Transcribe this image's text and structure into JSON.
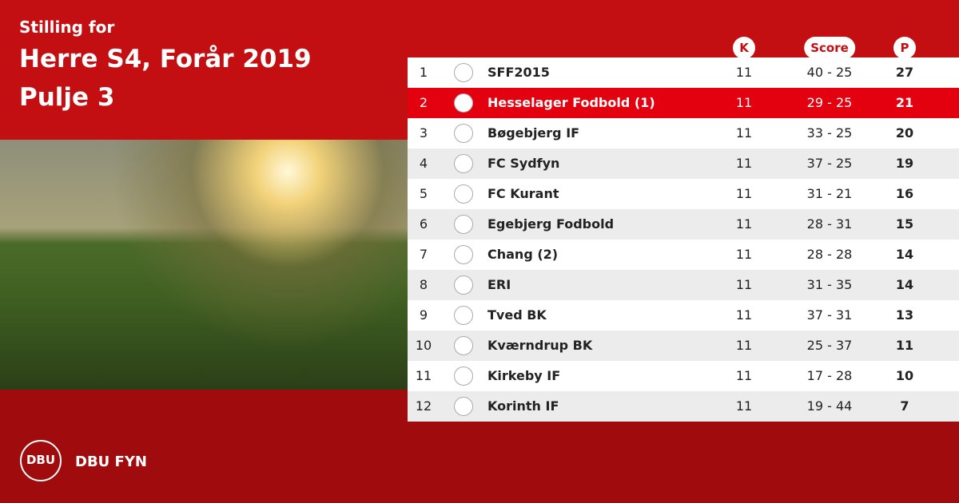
{
  "header": {
    "subtitle": "Stilling for",
    "title": "Herre S4, Forår 2019",
    "pool": "Pulje 3"
  },
  "table": {
    "columns": [
      "K",
      "Score",
      "P"
    ],
    "highlighted_row": 1,
    "rows": [
      [
        1,
        "SFF2015",
        11,
        "40 - 25",
        27
      ],
      [
        2,
        "Hesselager Fodbold (1)",
        11,
        "29 - 25",
        21
      ],
      [
        3,
        "Bøgebjerg IF",
        11,
        "33 - 25",
        20
      ],
      [
        4,
        "FC Sydfyn",
        11,
        "37 - 25",
        19
      ],
      [
        5,
        "FC Kurant",
        11,
        "31 - 21",
        16
      ],
      [
        6,
        "Egebjerg Fodbold",
        11,
        "28 - 31",
        15
      ],
      [
        7,
        "Chang (2)",
        11,
        "28 - 28",
        14
      ],
      [
        8,
        "ERI",
        11,
        "31 - 35",
        14
      ],
      [
        9,
        "Tved BK",
        11,
        "37 - 31",
        13
      ],
      [
        10,
        "Kværndrup BK",
        11,
        "25 - 37",
        11
      ],
      [
        11,
        "Kirkeby IF",
        11,
        "17 - 28",
        10
      ],
      [
        12,
        "Korinth IF",
        11,
        "19 - 44",
        7
      ]
    ]
  },
  "footer": {
    "logo": "DBU",
    "brand": "DBU FYN"
  }
}
